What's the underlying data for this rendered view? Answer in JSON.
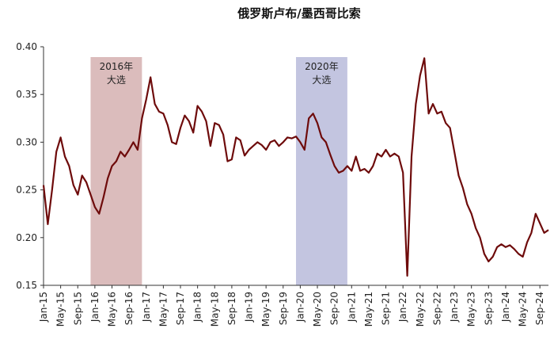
{
  "chart_data": {
    "type": "line",
    "title": "俄罗斯卢布/墨西哥比索",
    "xlabel": "",
    "ylabel": "",
    "ylim": [
      0.15,
      0.4
    ],
    "yticks": [
      "0.40",
      "0.35",
      "0.30",
      "0.25",
      "0.20",
      "0.15"
    ],
    "xlim": [
      "2015-01",
      "2024-11"
    ],
    "xticks": [
      "Jan-15",
      "May-15",
      "Sep-15",
      "Jan-16",
      "May-16",
      "Sep-16",
      "Jan-17",
      "May-17",
      "Sep-17",
      "Jan-18",
      "May-18",
      "Sep-18",
      "Jan-19",
      "May-19",
      "Sep-19",
      "Jan-20",
      "May-20",
      "Sep-20",
      "Jan-21",
      "May-21",
      "Sep-21",
      "Jan-22",
      "May-22",
      "Sep-22",
      "Jan-23",
      "May-23",
      "Sep-23",
      "Jan-24",
      "May-24",
      "Sep-24"
    ],
    "grid": false,
    "line_color": "#6e0b0b",
    "bands": [
      {
        "label_line1": "2016年",
        "label_line2": "大选",
        "start": "2015-12",
        "end": "2016-12",
        "color": "#dbbcbc"
      },
      {
        "label_line1": "2020年",
        "label_line2": "大选",
        "start": "2019-12",
        "end": "2020-12",
        "color": "#c3c5e0"
      }
    ],
    "series": [
      {
        "x": [
          "2015-01",
          "2015-02",
          "2015-03",
          "2015-04",
          "2015-05",
          "2015-06",
          "2015-07",
          "2015-08",
          "2015-09",
          "2015-10",
          "2015-11",
          "2015-12",
          "2016-01",
          "2016-02",
          "2016-03",
          "2016-04",
          "2016-05",
          "2016-06",
          "2016-07",
          "2016-08",
          "2016-09",
          "2016-10",
          "2016-11",
          "2016-12",
          "2017-01",
          "2017-02",
          "2017-03",
          "2017-04",
          "2017-05",
          "2017-06",
          "2017-07",
          "2017-08",
          "2017-09",
          "2017-10",
          "2017-11",
          "2017-12",
          "2018-01",
          "2018-02",
          "2018-03",
          "2018-04",
          "2018-05",
          "2018-06",
          "2018-07",
          "2018-08",
          "2018-09",
          "2018-10",
          "2018-11",
          "2018-12",
          "2019-01",
          "2019-02",
          "2019-03",
          "2019-04",
          "2019-05",
          "2019-06",
          "2019-07",
          "2019-08",
          "2019-09",
          "2019-10",
          "2019-11",
          "2019-12",
          "2020-01",
          "2020-02",
          "2020-03",
          "2020-04",
          "2020-05",
          "2020-06",
          "2020-07",
          "2020-08",
          "2020-09",
          "2020-10",
          "2020-11",
          "2020-12",
          "2021-01",
          "2021-02",
          "2021-03",
          "2021-04",
          "2021-05",
          "2021-06",
          "2021-07",
          "2021-08",
          "2021-09",
          "2021-10",
          "2021-11",
          "2021-12",
          "2022-01",
          "2022-02",
          "2022-03",
          "2022-04",
          "2022-05",
          "2022-06",
          "2022-07",
          "2022-08",
          "2022-09",
          "2022-10",
          "2022-11",
          "2022-12",
          "2023-01",
          "2023-02",
          "2023-03",
          "2023-04",
          "2023-05",
          "2023-06",
          "2023-07",
          "2023-08",
          "2023-09",
          "2023-10",
          "2023-11",
          "2023-12",
          "2024-01",
          "2024-02",
          "2024-03",
          "2024-04",
          "2024-05",
          "2024-06",
          "2024-07",
          "2024-08",
          "2024-09",
          "2024-10",
          "2024-11"
        ],
        "values": [
          0.255,
          0.214,
          0.25,
          0.29,
          0.305,
          0.285,
          0.275,
          0.255,
          0.245,
          0.265,
          0.258,
          0.245,
          0.232,
          0.225,
          0.242,
          0.262,
          0.275,
          0.28,
          0.29,
          0.285,
          0.292,
          0.3,
          0.292,
          0.325,
          0.345,
          0.368,
          0.34,
          0.332,
          0.33,
          0.318,
          0.3,
          0.298,
          0.315,
          0.328,
          0.322,
          0.31,
          0.338,
          0.332,
          0.322,
          0.296,
          0.32,
          0.318,
          0.308,
          0.28,
          0.282,
          0.305,
          0.302,
          0.286,
          0.292,
          0.296,
          0.3,
          0.297,
          0.292,
          0.3,
          0.302,
          0.296,
          0.3,
          0.305,
          0.304,
          0.306,
          0.3,
          0.292,
          0.325,
          0.33,
          0.32,
          0.305,
          0.3,
          0.287,
          0.275,
          0.268,
          0.27,
          0.275,
          0.27,
          0.285,
          0.27,
          0.272,
          0.268,
          0.275,
          0.288,
          0.285,
          0.292,
          0.285,
          0.288,
          0.285,
          0.268,
          0.16,
          0.285,
          0.34,
          0.37,
          0.388,
          0.33,
          0.34,
          0.33,
          0.332,
          0.32,
          0.315,
          0.29,
          0.265,
          0.252,
          0.235,
          0.225,
          0.21,
          0.2,
          0.183,
          0.175,
          0.18,
          0.19,
          0.193,
          0.19,
          0.192,
          0.188,
          0.183,
          0.18,
          0.195,
          0.205,
          0.225,
          0.215,
          0.205,
          0.208
        ]
      }
    ]
  }
}
